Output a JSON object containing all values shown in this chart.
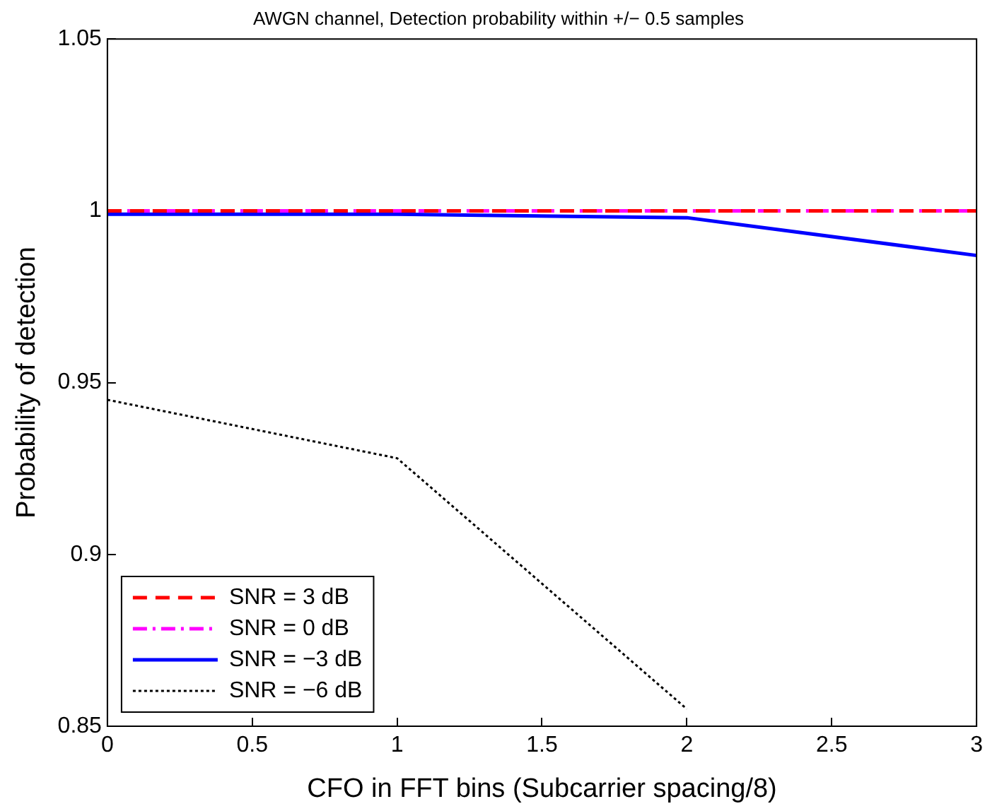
{
  "chart_data": {
    "type": "line",
    "title": "AWGN channel, Detection probability within +/− 0.5 samples",
    "xlabel": "CFO in FFT bins (Subcarrier spacing/8)",
    "ylabel": "Probability of detection",
    "x": [
      0,
      1,
      2,
      3
    ],
    "xlim": [
      0,
      3
    ],
    "xticks": [
      0,
      0.5,
      1,
      1.5,
      2,
      2.5,
      3
    ],
    "ylim": [
      0.85,
      1.05
    ],
    "yticks": [
      0.85,
      0.9,
      0.95,
      1,
      1.05
    ],
    "grid": false,
    "legend": "bottom left",
    "marker": "none",
    "series": [
      {
        "name": "SNR = 3 dB",
        "color": "#ff0000",
        "line_style": "dashed",
        "values": [
          1,
          1,
          1,
          1
        ]
      },
      {
        "name": "SNR = 0 dB",
        "color": "#ff00ff",
        "line_style": "dashdot",
        "values": [
          1,
          1,
          1,
          1
        ]
      },
      {
        "name": "SNR = −3 dB",
        "color": "#0000ff",
        "line_style": "solid",
        "values": [
          0.999,
          0.999,
          0.998,
          0.987
        ]
      },
      {
        "name": "SNR = −6 dB",
        "color": "#000000",
        "line_style": "dotted",
        "values": [
          0.945,
          0.928,
          0.855,
          null
        ]
      }
    ]
  }
}
